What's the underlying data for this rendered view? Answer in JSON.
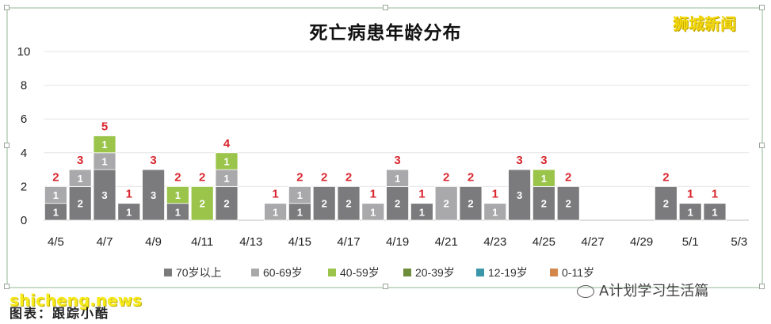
{
  "brand": "狮城新闻",
  "footer": {
    "caption": "图表：跟踪小酷",
    "watermark": "shicheng.news",
    "wechat": "A计划学习生活篇"
  },
  "chart_data": {
    "type": "bar",
    "stacked": true,
    "title": "死亡病患年龄分布",
    "ylim": [
      0,
      10
    ],
    "yticks": [
      "0",
      "2",
      "4",
      "6",
      "8",
      "10"
    ],
    "x_tick_labels": [
      "4/5",
      "4/7",
      "4/9",
      "4/11",
      "4/13",
      "4/15",
      "4/17",
      "4/19",
      "4/21",
      "4/23",
      "4/25",
      "4/27",
      "4/29",
      "5/1",
      "5/3"
    ],
    "categories": [
      "4/5",
      "4/6",
      "4/7",
      "4/8",
      "4/9",
      "4/10",
      "4/11",
      "4/12",
      "4/13",
      "4/14",
      "4/15",
      "4/16",
      "4/17",
      "4/18",
      "4/19",
      "4/20",
      "4/21",
      "4/22",
      "4/23",
      "4/24",
      "4/25",
      "4/26",
      "4/27",
      "4/28",
      "4/29",
      "4/30",
      "5/1",
      "5/2",
      "5/3"
    ],
    "series": [
      {
        "name": "70岁以上",
        "color": "#7b7b7d",
        "values": [
          1,
          2,
          3,
          1,
          3,
          1,
          0,
          2,
          0,
          0,
          1,
          2,
          2,
          0,
          2,
          1,
          0,
          2,
          0,
          3,
          2,
          2,
          0,
          0,
          0,
          2,
          1,
          1,
          0
        ]
      },
      {
        "name": "60-69岁",
        "color": "#a9a9ab",
        "values": [
          1,
          1,
          1,
          0,
          0,
          0,
          0,
          1,
          0,
          1,
          1,
          0,
          0,
          1,
          1,
          0,
          2,
          0,
          1,
          0,
          0,
          0,
          0,
          0,
          0,
          0,
          0,
          0,
          0
        ]
      },
      {
        "name": "40-59岁",
        "color": "#9ac44a",
        "values": [
          0,
          0,
          1,
          0,
          0,
          1,
          2,
          1,
          0,
          0,
          0,
          0,
          0,
          0,
          0,
          0,
          0,
          0,
          0,
          0,
          1,
          0,
          0,
          0,
          0,
          0,
          0,
          0,
          0
        ]
      },
      {
        "name": "20-39岁",
        "color": "#6d8d3a",
        "values": [
          0,
          0,
          0,
          0,
          0,
          0,
          0,
          0,
          0,
          0,
          0,
          0,
          0,
          0,
          0,
          0,
          0,
          0,
          0,
          0,
          0,
          0,
          0,
          0,
          0,
          0,
          0,
          0,
          0
        ]
      },
      {
        "name": "12-19岁",
        "color": "#3a97a8",
        "values": [
          0,
          0,
          0,
          0,
          0,
          0,
          0,
          0,
          0,
          0,
          0,
          0,
          0,
          0,
          0,
          0,
          0,
          0,
          0,
          0,
          0,
          0,
          0,
          0,
          0,
          0,
          0,
          0,
          0
        ]
      },
      {
        "name": "0-11岁",
        "color": "#d4874a",
        "values": [
          0,
          0,
          0,
          0,
          0,
          0,
          0,
          0,
          0,
          0,
          0,
          0,
          0,
          0,
          0,
          0,
          0,
          0,
          0,
          0,
          0,
          0,
          0,
          0,
          0,
          0,
          0,
          0,
          0
        ]
      }
    ],
    "totals": [
      2,
      3,
      5,
      1,
      3,
      2,
      2,
      4,
      0,
      1,
      2,
      2,
      2,
      1,
      3,
      1,
      2,
      2,
      1,
      3,
      3,
      2,
      0,
      0,
      0,
      2,
      1,
      1,
      0
    ],
    "total_label_color": "#d9262e",
    "grid": true,
    "legend_position": "bottom"
  }
}
